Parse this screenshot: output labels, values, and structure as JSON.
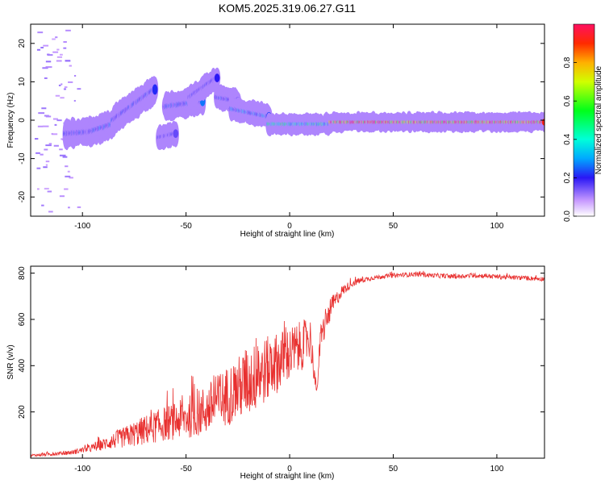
{
  "title": "KOM5.2025.319.06.27.G11",
  "chart_data": [
    {
      "type": "heatmap",
      "xlabel": "Height of straight line (km)",
      "ylabel": "Frequency (Hz)",
      "xlim": [
        -125,
        123
      ],
      "ylim": [
        -25,
        25
      ],
      "xticks": [
        -100,
        -50,
        0,
        50,
        100
      ],
      "yticks": [
        -20,
        -10,
        0,
        10,
        20
      ],
      "colorbar": {
        "label": "Normalized spectral amplitude",
        "range": [
          0,
          1
        ],
        "ticks": [
          0.0,
          0.2,
          0.4,
          0.6,
          0.8
        ]
      },
      "ridge_segments": [
        {
          "x": [
            -108,
            -96
          ],
          "f": [
            -3.5,
            -3
          ],
          "amp": 0.22,
          "width_hz": 3
        },
        {
          "x": [
            -96,
            -85
          ],
          "f": [
            -3,
            -1
          ],
          "amp": 0.25,
          "width_hz": 3
        },
        {
          "x": [
            -85,
            -65
          ],
          "f": [
            0,
            8
          ],
          "amp": 0.22,
          "width_hz": 3
        },
        {
          "x": [
            -63,
            -55
          ],
          "f": [
            -4.5,
            -3.5
          ],
          "amp": 0.2,
          "width_hz": 2.5
        },
        {
          "x": [
            -60,
            -42
          ],
          "f": [
            3.5,
            5
          ],
          "amp": 0.25,
          "width_hz": 3
        },
        {
          "x": [
            -48,
            -35
          ],
          "f": [
            6,
            11
          ],
          "amp": 0.2,
          "width_hz": 2.5
        },
        {
          "x": [
            -35,
            -25
          ],
          "f": [
            6,
            5
          ],
          "amp": 0.22,
          "width_hz": 2.5
        },
        {
          "x": [
            -28,
            -10
          ],
          "f": [
            3,
            1
          ],
          "amp": 0.3,
          "width_hz": 2.5
        },
        {
          "x": [
            -10,
            20
          ],
          "f": [
            -1,
            -1
          ],
          "amp": 0.45,
          "width_hz": 2.2
        },
        {
          "x": [
            20,
            123
          ],
          "f": [
            -0.5,
            -0.5
          ],
          "amp": 0.95,
          "width_hz": 2.0
        }
      ]
    },
    {
      "type": "line",
      "xlabel": "Height of straight line (km)",
      "ylabel": "SNR (v/v)",
      "xlim": [
        -125,
        123
      ],
      "ylim": [
        0,
        830
      ],
      "xticks": [
        -100,
        -50,
        0,
        50,
        100
      ],
      "yticks": [
        200,
        400,
        600,
        800
      ],
      "series": [
        {
          "color": "#e8302f",
          "x": [
            -125,
            -115,
            -105,
            -100,
            -95,
            -90,
            -85,
            -80,
            -75,
            -70,
            -65,
            -60,
            -55,
            -50,
            -45,
            -40,
            -35,
            -30,
            -25,
            -20,
            -15,
            -10,
            -5,
            0,
            5,
            10,
            13,
            15,
            20,
            25,
            30,
            35,
            40,
            50,
            60,
            70,
            80,
            90,
            100,
            110,
            123
          ],
          "y": [
            12,
            18,
            25,
            35,
            45,
            60,
            75,
            90,
            105,
            120,
            135,
            150,
            160,
            175,
            190,
            210,
            240,
            270,
            300,
            330,
            360,
            390,
            420,
            450,
            480,
            520,
            280,
            520,
            650,
            720,
            755,
            770,
            780,
            790,
            795,
            790,
            785,
            790,
            785,
            780,
            775
          ],
          "spread": [
            5,
            8,
            10,
            12,
            18,
            25,
            35,
            45,
            55,
            65,
            70,
            75,
            80,
            90,
            100,
            110,
            120,
            130,
            140,
            150,
            150,
            140,
            130,
            120,
            110,
            90,
            20,
            70,
            45,
            25,
            15,
            12,
            10,
            10,
            10,
            10,
            10,
            10,
            10,
            10,
            10
          ]
        }
      ]
    }
  ]
}
